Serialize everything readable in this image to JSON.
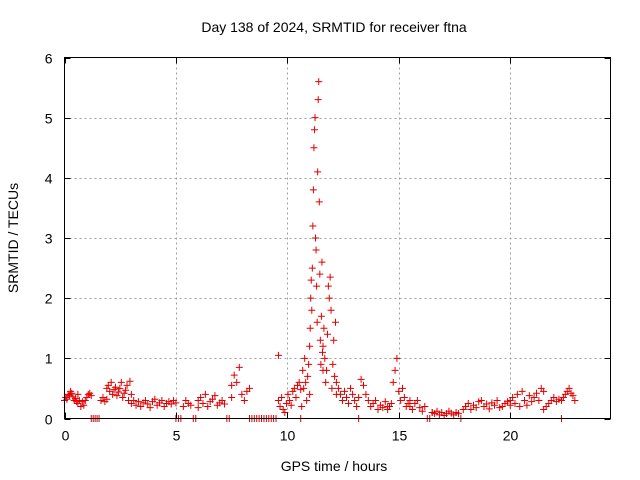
{
  "chart_data": {
    "type": "scatter",
    "title": "Day 138 of 2024, SRMTID for receiver ftna",
    "xlabel": "GPS time / hours",
    "ylabel": "SRMTID / TECUs",
    "xlim": [
      0,
      24.5
    ],
    "ylim": [
      0,
      6
    ],
    "x_ticks": [
      0,
      5,
      10,
      15,
      20
    ],
    "y_ticks": [
      0,
      1,
      2,
      3,
      4,
      5,
      6
    ],
    "grid": true,
    "marker": "plus",
    "color": "#e00000",
    "series": [
      {
        "name": "SRMTID",
        "description": "approximate per-epoch values read from plot",
        "segments": [
          {
            "x_start": 0.0,
            "x_end": 0.6,
            "values": [
              0.3,
              0.35,
              0.32,
              0.4,
              0.38,
              0.45,
              0.42,
              0.36,
              0.3,
              0.33,
              0.28,
              0.4
            ]
          },
          {
            "x_start": 0.6,
            "x_end": 1.2,
            "values": [
              0.25,
              0.3,
              0.2,
              0.28,
              0.22,
              0.3,
              0.35,
              0.4,
              0.42,
              0.38
            ]
          },
          {
            "x_start": 1.2,
            "x_end": 1.9,
            "values": [
              0.0,
              0.0,
              0.0,
              0.0,
              0.0,
              0.3,
              0.35,
              0.28,
              0.32
            ]
          },
          {
            "x_start": 1.9,
            "x_end": 3.0,
            "values": [
              0.5,
              0.55,
              0.45,
              0.6,
              0.4,
              0.48,
              0.52,
              0.38,
              0.44,
              0.5,
              0.6,
              0.35,
              0.42,
              0.47,
              0.55,
              0.3,
              0.62,
              0.4
            ]
          },
          {
            "x_start": 3.0,
            "x_end": 5.0,
            "values": [
              0.25,
              0.3,
              0.22,
              0.28,
              0.2,
              0.26,
              0.3,
              0.24,
              0.18,
              0.28,
              0.32,
              0.22,
              0.26,
              0.3,
              0.2,
              0.25,
              0.28,
              0.24,
              0.3,
              0.26
            ]
          },
          {
            "x_start": 5.0,
            "x_end": 6.0,
            "values": [
              0.0,
              0.0,
              0.0,
              0.2,
              0.3,
              0.25,
              0.22,
              0.0,
              0.0,
              0.18
            ]
          },
          {
            "x_start": 6.0,
            "x_end": 7.5,
            "values": [
              0.3,
              0.35,
              0.25,
              0.4,
              0.2,
              0.28,
              0.32,
              0.38,
              0.22,
              0.26,
              0.3,
              0.24,
              0.0,
              0.0,
              0.35
            ]
          },
          {
            "x_start": 7.5,
            "x_end": 8.3,
            "values": [
              0.55,
              0.72,
              0.6,
              0.85,
              0.4,
              0.3,
              0.45,
              0.5
            ]
          },
          {
            "x_start": 8.3,
            "x_end": 9.6,
            "values": [
              0.0,
              0.0,
              0.0,
              0.0,
              0.0,
              0.0,
              0.0,
              0.0,
              0.0,
              0.0,
              0.0,
              0.0,
              1.05
            ]
          },
          {
            "x_start": 9.6,
            "x_end": 10.6,
            "values": [
              0.3,
              0.2,
              0.35,
              0.15,
              0.1,
              0.25,
              0.4,
              0.3,
              0.22,
              0.45,
              0.5,
              0.35,
              0.55,
              0.6,
              0.48
            ]
          },
          {
            "x_start": 10.6,
            "x_end": 11.0,
            "values": [
              0.0,
              0.2,
              0.8,
              0.5,
              1.0,
              0.6,
              0.3,
              0.7,
              0.9,
              0.4
            ]
          },
          {
            "x_start": 11.0,
            "x_end": 11.6,
            "values": [
              1.2,
              1.5,
              2.0,
              2.3,
              1.8,
              2.5,
              3.2,
              3.8,
              4.5,
              4.8,
              5.0,
              3.0,
              2.8,
              2.2,
              1.6,
              4.1,
              5.3,
              5.6,
              3.6,
              2.4,
              1.3,
              0.9,
              1.7,
              2.6,
              1.1,
              0.8
            ]
          },
          {
            "x_start": 11.6,
            "x_end": 12.2,
            "values": [
              1.2,
              1.5,
              1.0,
              0.6,
              0.8,
              1.4,
              2.2,
              2.0,
              2.35,
              1.8,
              0.5,
              0.9,
              1.3,
              0.7,
              1.6,
              0.4
            ]
          },
          {
            "x_start": 12.2,
            "x_end": 13.2,
            "values": [
              0.6,
              0.5,
              0.4,
              0.3,
              0.45,
              0.35,
              0.25,
              0.5,
              0.4,
              0.3,
              0.2,
              0.35
            ]
          },
          {
            "x_start": 13.2,
            "x_end": 14.5,
            "values": [
              0.0,
              0.65,
              0.55,
              0.4,
              0.3,
              0.2,
              0.25,
              0.3,
              0.15,
              0.22,
              0.18,
              0.28,
              0.2
            ]
          },
          {
            "x_start": 14.5,
            "x_end": 15.5,
            "values": [
              0.15,
              0.2,
              0.25,
              0.6,
              0.8,
              1.0,
              0.45,
              0.3,
              0.5,
              0.35,
              0.2,
              0.25,
              0.3
            ]
          },
          {
            "x_start": 15.5,
            "x_end": 16.5,
            "values": [
              0.2,
              0.15,
              0.25,
              0.3,
              0.18,
              0.12,
              0.2,
              0.0,
              0.0,
              0.1
            ]
          },
          {
            "x_start": 16.5,
            "x_end": 18.0,
            "values": [
              0.1,
              0.08,
              0.12,
              0.06,
              0.1,
              0.05,
              0.08,
              0.12,
              0.09,
              0.06,
              0.1,
              0.08,
              0.0,
              0.15,
              0.2
            ]
          },
          {
            "x_start": 18.0,
            "x_end": 20.0,
            "values": [
              0.2,
              0.25,
              0.15,
              0.22,
              0.18,
              0.28,
              0.3,
              0.2,
              0.24,
              0.16,
              0.26,
              0.22,
              0.3,
              0.18,
              0.2,
              0.25,
              0.28,
              0.22
            ]
          },
          {
            "x_start": 20.0,
            "x_end": 21.5,
            "values": [
              0.3,
              0.35,
              0.25,
              0.4,
              0.2,
              0.45,
              0.3,
              0.22,
              0.38,
              0.28,
              0.35,
              0.42,
              0.3,
              0.5,
              0.45
            ]
          },
          {
            "x_start": 21.5,
            "x_end": 22.3,
            "values": [
              0.15,
              0.2,
              0.25,
              0.3,
              0.35,
              0.28,
              0.32,
              0.0
            ]
          },
          {
            "x_start": 22.3,
            "x_end": 22.9,
            "values": [
              0.3,
              0.35,
              0.4,
              0.45,
              0.5,
              0.42,
              0.38,
              0.3
            ]
          }
        ]
      }
    ]
  }
}
